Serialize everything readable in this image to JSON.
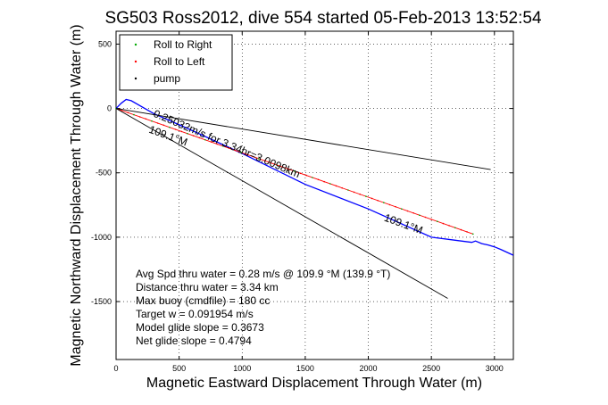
{
  "chart_data": {
    "type": "line",
    "title": "SG503 Ross2012, dive 554 started 05-Feb-2013 13:52:54",
    "xlabel": "Magnetic Eastward Displacement Through Water (m)",
    "ylabel": "Magnetic Northward Displacement Through Water (m)",
    "xlim": [
      0,
      3150
    ],
    "ylim": [
      -1950,
      600
    ],
    "xticks": [
      0,
      500,
      1000,
      1500,
      2000,
      2500,
      3000
    ],
    "yticks": [
      -1500,
      -1000,
      -500,
      0,
      500
    ],
    "xtick_labels": [
      "0",
      "500",
      "1000",
      "1500",
      "2000",
      "2500",
      "3000"
    ],
    "ytick_labels": [
      "-1500",
      "-1000",
      "-500",
      "0",
      "500"
    ],
    "grid": true,
    "legend_position": "top-left",
    "colors": {
      "roll_right": "#00aa00",
      "roll_left": "#ff0000",
      "pump": "#000000",
      "track": "#0000ff",
      "reference": "#000000"
    },
    "legend": [
      {
        "label": "Roll to Right",
        "color": "#00aa00"
      },
      {
        "label": "Roll to Left",
        "color": "#ff0000"
      },
      {
        "label": "pump",
        "color": "#000000"
      }
    ],
    "series": [
      {
        "style": "track",
        "color": "#0000ff",
        "x": [
          0,
          40,
          80,
          120,
          300,
          600,
          1000,
          1500,
          2000,
          2500,
          2820,
          2850,
          2900,
          2950,
          3000,
          3050,
          3150
        ],
        "y": [
          0,
          40,
          70,
          60,
          -40,
          -170,
          -350,
          -590,
          -780,
          -1000,
          -1040,
          -1030,
          -1050,
          -1060,
          -1075,
          -1095,
          -1140
        ]
      },
      {
        "style": "roll",
        "color": "#ff0000",
        "x": [
          0,
          2830
        ],
        "y": [
          0,
          -975
        ]
      },
      {
        "style": "reference",
        "color": "#000000",
        "x": [
          0,
          2970
        ],
        "y": [
          0,
          -475
        ]
      },
      {
        "style": "reference",
        "color": "#000000",
        "x": [
          0,
          2630
        ],
        "y": [
          0,
          -1475
        ]
      }
    ],
    "annotations": [
      {
        "text": "0.25032m/s for 3.34hr=3.0098km",
        "x": 290,
        "y": -60,
        "angle": 23
      },
      {
        "text": "109.1°M",
        "x": 255,
        "y": -185,
        "angle": 20
      },
      {
        "text": "109.1°M",
        "x": 2120,
        "y": -870,
        "angle": 20
      }
    ],
    "stats": [
      "Avg Spd thru water =  0.28 m/s @ 109.9   °M (139.9 °T)",
      "Distance thru water =  3.34 km",
      "Max buoy (cmdfile) = 180 cc",
      "Target w = 0.091954 m/s",
      "Model glide slope = 0.3673",
      "Net glide slope = 0.4794"
    ]
  }
}
